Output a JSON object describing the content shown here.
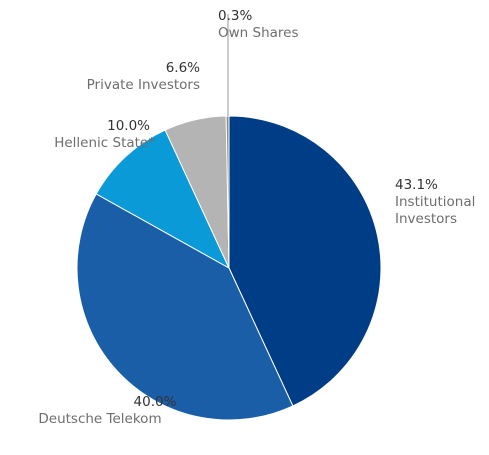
{
  "chart_data": {
    "type": "pie",
    "categories": [
      "Institutional Investors",
      "Deutsche Telekom",
      "Hellenic State*",
      "Private Investors",
      "Own Shares"
    ],
    "values": [
      43.1,
      40.0,
      10.0,
      6.6,
      0.3
    ],
    "value_labels": [
      "43.1%",
      "40.0%",
      "10.0%",
      "6.6%",
      "0.3%"
    ],
    "colors": [
      "#003d87",
      "#1b5ea8",
      "#0a9ad7",
      "#b4b4b4",
      "#8c8c8c"
    ]
  }
}
